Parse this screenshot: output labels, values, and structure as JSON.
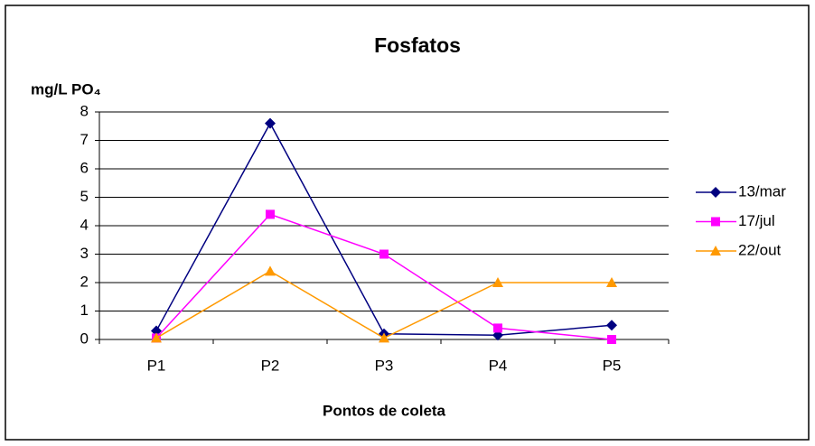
{
  "chart_data": {
    "type": "line",
    "title": "Fosfatos",
    "y_label": "mg/L PO₄",
    "x_label": "Pontos de coleta",
    "categories": [
      "P1",
      "P2",
      "P3",
      "P4",
      "P5"
    ],
    "series": [
      {
        "name": "13/mar",
        "color": "#000080",
        "marker": "diamond",
        "values": [
          0.3,
          7.6,
          0.2,
          0.15,
          0.5
        ]
      },
      {
        "name": "17/jul",
        "color": "#ff00ff",
        "marker": "square",
        "values": [
          0.05,
          4.4,
          3.0,
          0.4,
          0.0
        ]
      },
      {
        "name": "22/out",
        "color": "#ff9900",
        "marker": "triangle",
        "values": [
          0.05,
          2.4,
          0.05,
          2.0,
          2.0
        ]
      }
    ],
    "ylim": [
      0,
      8
    ],
    "yticks": [
      0,
      1,
      2,
      3,
      4,
      5,
      6,
      7,
      8
    ],
    "grid": true,
    "legend": "right"
  }
}
